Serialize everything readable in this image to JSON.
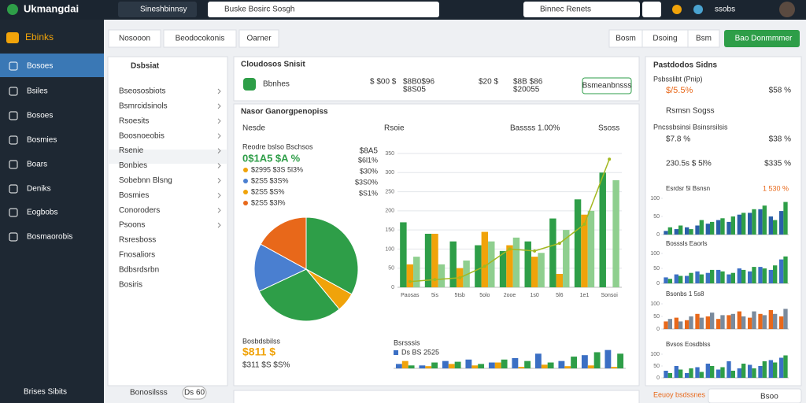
{
  "topbar": {
    "brand": "Ukmangdai",
    "search1": "Sineshbinnsy",
    "search2": "Buske Bosirc Sosgh",
    "select": "Binnec Renets",
    "user": "ssobs"
  },
  "sidebar": {
    "brand": "Ebinks",
    "items": [
      "Bosoes",
      "Bsiles",
      "Bosoes",
      "Bosmies",
      "Boars",
      "Deniks",
      "Eogbobs",
      "Bosmaorobis"
    ],
    "footer": "Brises Sibits"
  },
  "toolbar": {
    "left": [
      "Nosooon",
      "Beodocokonis",
      "Oarner"
    ],
    "right": [
      "Bosm",
      "Dsoing",
      "Bsm"
    ],
    "primary": "Bao Donmmmer"
  },
  "list_panel": {
    "title": "Dsbsiat",
    "items": [
      "Bseososbiots",
      "Bsmrcidsinols",
      "Rsoesits",
      "Boosnoeobis",
      "Rsenie",
      "Bonbies",
      "Sobebnn Blsng",
      "Bosmies",
      "Conoroders",
      "Psoons",
      "Rsresboss",
      "Fnosaliors",
      "Bdbsrdsrbn",
      "Bosiris"
    ],
    "footer": "Bonosilsss",
    "footer_button": "Ds 60"
  },
  "summary": {
    "title": "Cloudosos Snisit",
    "name": "Bbnhes",
    "metrics": [
      [
        "$ $00 $",
        "$8B0$96",
        "$8S05"
      ],
      [
        "$20 $",
        ""
      ],
      [
        "$8B $86",
        "$20055"
      ]
    ],
    "button": "Bsmeanbnsss"
  },
  "chart_card": {
    "title": "Nasor Ganorgpenopiss",
    "tab1": "Nesde",
    "tab2": "Rsoie",
    "control1": "Bassss 1.00%",
    "control2": "Ssoss"
  },
  "pie_stats": {
    "heading": "Reodre bslso Bschsos",
    "big": "0$1A5 $A %",
    "big_right": "$8A5",
    "rows": [
      [
        "$2995 $3S 5l3%",
        "$6l1%"
      ],
      [
        "$2S5 $3S%",
        "$30%"
      ],
      [
        "$2S5 $S%",
        "$3S0%"
      ],
      [
        "$2S5 $3l%",
        "$S1%"
      ]
    ],
    "total_label": "Bosbdsbilss",
    "total": "$811 $",
    "total_sub": "$311 $S $S%"
  },
  "legend2": {
    "title": "Bsrsssis",
    "item": "Ds BS 2525"
  },
  "right_panel": {
    "title": "Pastdodos Sidns",
    "item1": "Psbsslibt (Pnip)",
    "v1": "$/5.5%",
    "v1r": "$58 %",
    "item2": "Rsmsn Sogss",
    "item3": "Pncssbsinsi Bsinsrsilsis",
    "v3": "$7.8 %",
    "v3r": "$38 %",
    "v4": "230.5s $ 5l%",
    "v4r": "$335 %",
    "footer": "Eeuoy bsdssnes",
    "footer_button": "Bsoo"
  },
  "chart_data": [
    {
      "type": "pie",
      "values": [
        33,
        6,
        29,
        15,
        17
      ],
      "colors": [
        "#2e9e48",
        "#f0a30a",
        "#2e9e48",
        "#4a7fd0",
        "#e8681a"
      ]
    },
    {
      "type": "bar",
      "categories": [
        "Paosas",
        "5is",
        "5tsb",
        "5olo",
        "2ooe",
        "1s0",
        "5l6",
        "1e1",
        "Sonsoi"
      ],
      "series": [
        {
          "color": "#2e9e48",
          "values": [
            170,
            140,
            120,
            110,
            95,
            120,
            180,
            230,
            300
          ]
        },
        {
          "color": "#f0a30a",
          "values": [
            60,
            140,
            50,
            145,
            110,
            80,
            35,
            190,
            0
          ]
        },
        {
          "color": "#8fcf8f",
          "values": [
            80,
            60,
            70,
            120,
            130,
            90,
            150,
            200,
            280
          ]
        },
        {
          "kind": "line",
          "color": "#a3b820",
          "values": [
            15,
            20,
            25,
            55,
            100,
            95,
            115,
            165,
            335
          ]
        }
      ],
      "ylim": [
        0,
        350
      ],
      "yticks": [
        0,
        50,
        100,
        150,
        200,
        250,
        300,
        350
      ],
      "grid": true
    },
    {
      "type": "bar",
      "series": [
        {
          "color": "#3b6fc4",
          "values": [
            6,
            4,
            10,
            12,
            8,
            14,
            20,
            10,
            18,
            25
          ]
        },
        {
          "color": "#f0a30a",
          "values": [
            10,
            3,
            6,
            4,
            8,
            2,
            5,
            3,
            4,
            2
          ]
        },
        {
          "color": "#2e9e48",
          "values": [
            4,
            8,
            9,
            6,
            12,
            10,
            8,
            16,
            22,
            20
          ]
        }
      ],
      "ylim": [
        0,
        30
      ]
    },
    {
      "type": "bar",
      "title": "Esrdsr 5l Bsnsn",
      "title_right": "1 530 %",
      "series": [
        {
          "color": "#2a5fa8",
          "values": [
            10,
            15,
            20,
            25,
            30,
            40,
            35,
            55,
            60,
            70,
            50,
            65
          ]
        },
        {
          "color": "#2e9e48",
          "values": [
            20,
            25,
            15,
            40,
            35,
            45,
            50,
            60,
            70,
            80,
            40,
            90
          ]
        }
      ],
      "ylim": [
        0,
        100
      ],
      "yticks": [
        0,
        50,
        100
      ]
    },
    {
      "type": "bar",
      "title": "Bosssls Eaorls",
      "series": [
        {
          "color": "#3b6fc4",
          "values": [
            20,
            30,
            25,
            40,
            35,
            45,
            30,
            50,
            40,
            55,
            45,
            80
          ]
        },
        {
          "color": "#2e9e48",
          "values": [
            15,
            25,
            35,
            30,
            45,
            40,
            35,
            45,
            55,
            50,
            60,
            90
          ]
        }
      ],
      "ylim": [
        0,
        100
      ],
      "yticks": [
        0,
        50,
        100
      ]
    },
    {
      "type": "bar",
      "title": "Bsonbs 1 5s8",
      "series": [
        {
          "color": "#e8681a",
          "values": [
            30,
            45,
            35,
            60,
            50,
            40,
            55,
            70,
            45,
            60,
            75,
            50
          ]
        },
        {
          "color": "#7a8a9c",
          "values": [
            40,
            30,
            50,
            45,
            65,
            55,
            60,
            50,
            70,
            55,
            60,
            80
          ]
        }
      ],
      "ylim": [
        0,
        100
      ],
      "yticks": [
        0,
        50,
        100
      ]
    },
    {
      "type": "bar",
      "title": "Bvsos Eosdblss",
      "series": [
        {
          "color": "#3b6fc4",
          "values": [
            30,
            50,
            20,
            45,
            60,
            35,
            70,
            40,
            55,
            50,
            75,
            85
          ]
        },
        {
          "color": "#2e9e48",
          "values": [
            20,
            35,
            40,
            25,
            50,
            45,
            30,
            60,
            40,
            70,
            65,
            95
          ]
        }
      ],
      "ylim": [
        0,
        100
      ],
      "yticks": [
        0,
        50,
        100
      ]
    }
  ]
}
